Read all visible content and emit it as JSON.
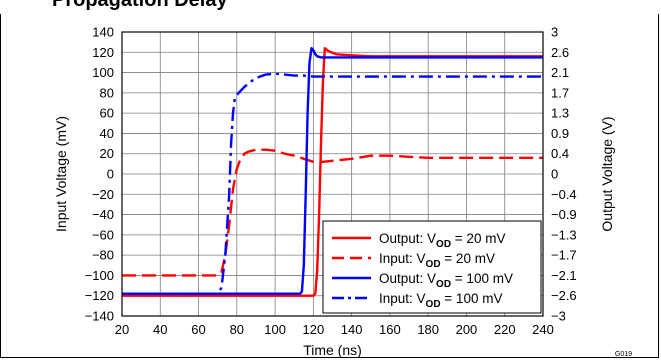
{
  "chart_data": {
    "type": "line",
    "title": "Propagation Delay",
    "xlabel": "Time (ns)",
    "ylabel": "Input Voltage (mV)",
    "y2label": "Output Voltage (V)",
    "xlim": [
      20,
      240
    ],
    "ylim": [
      -140,
      140
    ],
    "y2lim": [
      -3,
      3
    ],
    "x_ticks": [
      20,
      40,
      60,
      80,
      100,
      120,
      140,
      160,
      180,
      200,
      220,
      240
    ],
    "y_ticks": [
      -140,
      -120,
      -100,
      -80,
      -60,
      -40,
      -20,
      0,
      20,
      40,
      60,
      80,
      100,
      120,
      140
    ],
    "y2_tick_labels": [
      "−3",
      "−2.6",
      "−2.1",
      "−1.7",
      "−1.3",
      "−0.9",
      "−0.4",
      "0",
      "0.4",
      "0.9",
      "1.3",
      "1.7",
      "2.1",
      "2.6",
      "3"
    ],
    "grid": true,
    "legend_position": "bottom-right",
    "figure_id": "G019",
    "series": [
      {
        "name": "Output: VOD = 20 mV",
        "legend": {
          "prefix": "Output: V",
          "sub": "OD",
          "suffix": " = 20 mV"
        },
        "color": "#ff0000",
        "dash": "solid",
        "axis": "y",
        "x": [
          20,
          120,
          121,
          122,
          123,
          124,
          125,
          126,
          128,
          132,
          140,
          150,
          160,
          180,
          200,
          220,
          240
        ],
        "y": [
          -120,
          -120,
          -118,
          -95,
          -40,
          30,
          90,
          124,
          121,
          118,
          117,
          116,
          116,
          116,
          116,
          116,
          116
        ]
      },
      {
        "name": "Input: VOD = 20 mV",
        "legend": {
          "prefix": "Input: V",
          "sub": "OD",
          "suffix": " = 20 mV"
        },
        "color": "#ff0000",
        "dash": "dashed",
        "axis": "y",
        "x": [
          20,
          70,
          72,
          74,
          76,
          78,
          80,
          82,
          84,
          86,
          88,
          90,
          95,
          100,
          105,
          110,
          115,
          120,
          125,
          130,
          135,
          140,
          150,
          160,
          170,
          180,
          190,
          200,
          210,
          220,
          230,
          240
        ],
        "y": [
          -100,
          -100,
          -97,
          -80,
          -50,
          -15,
          5,
          15,
          20,
          22,
          23,
          24,
          24,
          23,
          20,
          18,
          15,
          12,
          12,
          13,
          14,
          15,
          18,
          18,
          17,
          16,
          16,
          16,
          16,
          16,
          16,
          16
        ]
      },
      {
        "name": "Output: VOD = 100 mV",
        "legend": {
          "prefix": "Output: V",
          "sub": "OD",
          "suffix": " = 100 mV"
        },
        "color": "#0000ff",
        "dash": "solid",
        "axis": "y",
        "x": [
          20,
          113,
          114,
          115,
          116,
          117,
          118,
          119,
          120,
          121,
          122,
          124,
          130,
          140,
          160,
          180,
          200,
          220,
          240
        ],
        "y": [
          -118,
          -118,
          -116,
          -90,
          -20,
          60,
          110,
          124,
          122,
          118,
          116,
          115,
          115,
          115,
          115,
          115,
          115,
          115,
          115
        ]
      },
      {
        "name": "Input: VOD = 100 mV",
        "legend": {
          "prefix": "Input: V",
          "sub": "OD",
          "suffix": " = 100 mV"
        },
        "color": "#0000ff",
        "dash": "dashdot",
        "axis": "y",
        "x": [
          20,
          70,
          72,
          74,
          76,
          77,
          78,
          79,
          80,
          82,
          84,
          86,
          88,
          90,
          92,
          95,
          100,
          105,
          110,
          115,
          120,
          125,
          130,
          140,
          160,
          180,
          200,
          220,
          240
        ],
        "y": [
          -118,
          -118,
          -112,
          -80,
          -20,
          30,
          60,
          75,
          78,
          82,
          86,
          89,
          92,
          94,
          96,
          98,
          99,
          98,
          97,
          97,
          96,
          96,
          96,
          96,
          96,
          96,
          96,
          96,
          96
        ]
      }
    ]
  }
}
